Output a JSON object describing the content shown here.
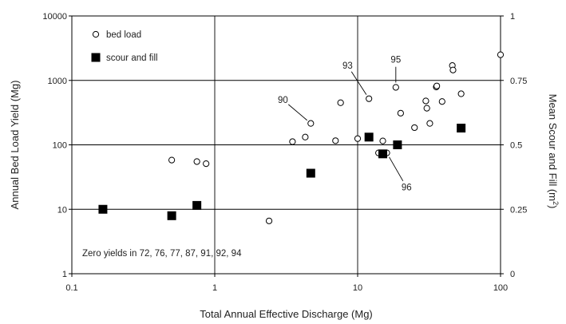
{
  "chart_data": {
    "type": "scatter",
    "title": "",
    "xlabel": "Total Annual Effective Discharge (Mg)",
    "ylabel_left": "Annual Bed Load Yield (Mg)",
    "ylabel_right": "Mean Scour and Fill (m",
    "ylabel_right_sup": "2",
    "ylabel_right_close": ")",
    "x_scale": "log",
    "xlim": [
      0.1,
      100
    ],
    "x_ticks": [
      "0.1",
      "1",
      "10",
      "100"
    ],
    "y_left_scale": "log",
    "ylim_left": [
      1,
      10000
    ],
    "y_left_ticks": [
      "1",
      "10",
      "100",
      "1000",
      "10000"
    ],
    "y_right_scale": "linear",
    "ylim_right": [
      0,
      1
    ],
    "y_right_ticks": [
      "0",
      "0.25",
      "0.5",
      "0.75",
      "1"
    ],
    "grid": true,
    "legend_position": "top-left",
    "colors": {
      "axis": "#000000",
      "grid": "#000000",
      "marker": "#000000"
    },
    "series": [
      {
        "name": "bed load",
        "marker": "open-circle",
        "axis": "left",
        "points": [
          [
            0.5,
            58
          ],
          [
            0.75,
            55
          ],
          [
            0.87,
            51
          ],
          [
            2.4,
            6.6
          ],
          [
            3.5,
            112
          ],
          [
            4.3,
            132
          ],
          [
            4.7,
            215
          ],
          [
            7.0,
            116
          ],
          [
            7.6,
            450
          ],
          [
            10.0,
            125
          ],
          [
            12.0,
            520
          ],
          [
            14.0,
            75
          ],
          [
            15.0,
            115
          ],
          [
            16.0,
            75
          ],
          [
            18.5,
            780
          ],
          [
            20.0,
            310
          ],
          [
            25.0,
            185
          ],
          [
            30.0,
            480
          ],
          [
            30.5,
            370
          ],
          [
            32.0,
            215
          ],
          [
            35.5,
            790
          ],
          [
            35.8,
            820
          ],
          [
            39.0,
            470
          ],
          [
            46.0,
            1700
          ],
          [
            46.5,
            1450
          ],
          [
            53.0,
            620
          ],
          [
            100.0,
            2500
          ]
        ]
      },
      {
        "name": "scour and fill",
        "marker": "filled-square",
        "axis": "right",
        "points": [
          [
            0.165,
            0.25
          ],
          [
            0.5,
            0.225
          ],
          [
            0.75,
            0.265
          ],
          [
            4.7,
            0.39
          ],
          [
            12.0,
            0.53
          ],
          [
            15.0,
            0.465
          ],
          [
            19.0,
            0.5
          ],
          [
            53.0,
            0.565
          ]
        ]
      }
    ],
    "annotations": [
      {
        "label": "90",
        "point": [
          4.7,
          215
        ],
        "text_at": [
          3.0,
          500
        ]
      },
      {
        "label": "93",
        "point": [
          12.0,
          520
        ],
        "text_at": [
          8.5,
          1700
        ]
      },
      {
        "label": "95",
        "point": [
          18.5,
          780
        ],
        "text_at": [
          18.5,
          2100
        ]
      },
      {
        "label": "96",
        "point": [
          16.0,
          75
        ],
        "text_at": [
          22.0,
          22
        ]
      }
    ],
    "note": "Zero yields in 72, 76, 77, 87, 91, 92, 94"
  }
}
